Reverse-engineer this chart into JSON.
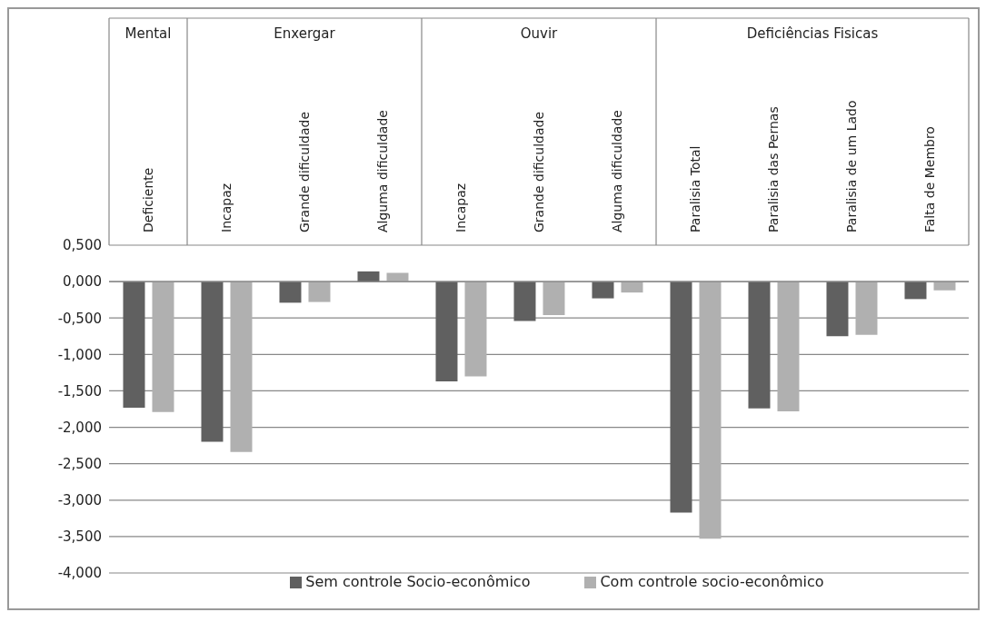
{
  "chart_data": {
    "type": "bar",
    "categories": [
      "Deficiente",
      "Incapaz",
      "Grande dificuldade",
      "Alguma dificuldade",
      "Incapaz",
      "Grande dificuldade",
      "Alguma dificuldade",
      "Paralisia Total",
      "Paralisia das Pernas",
      "Paralisia de um Lado",
      "Falta de Membro"
    ],
    "series": [
      {
        "name": "Sem controle Socio-econômico",
        "color": "#606060",
        "values": [
          -1.73,
          -2.2,
          -0.29,
          0.14,
          -1.37,
          -0.54,
          -0.23,
          -3.17,
          -1.74,
          -0.75,
          -0.24
        ]
      },
      {
        "name": "Com controle socio-econômico",
        "color": "#b0b0b0",
        "values": [
          -1.79,
          -2.34,
          -0.28,
          0.12,
          -1.3,
          -0.46,
          -0.15,
          -3.53,
          -1.78,
          -0.73,
          -0.12
        ]
      }
    ],
    "annotations": [
      "Mental",
      "Enxergar",
      "Ouvir",
      "Deficiências Fisicas"
    ],
    "ylim": [
      -4,
      0.5
    ],
    "yticks": [
      {
        "value": 0.5,
        "label": "0,500"
      },
      {
        "value": 0,
        "label": "0,000"
      },
      {
        "value": -0.5,
        "label": "-0,500"
      },
      {
        "value": -1,
        "label": "-1,000"
      },
      {
        "value": -1.5,
        "label": "-1,500"
      },
      {
        "value": -2,
        "label": "-2,000"
      },
      {
        "value": -2.5,
        "label": "-2,500"
      },
      {
        "value": -3,
        "label": "-3,000"
      },
      {
        "value": -3.5,
        "label": "-3,500"
      },
      {
        "value": -4,
        "label": "-4,000"
      }
    ],
    "grid": "y",
    "legend": "bottom"
  }
}
